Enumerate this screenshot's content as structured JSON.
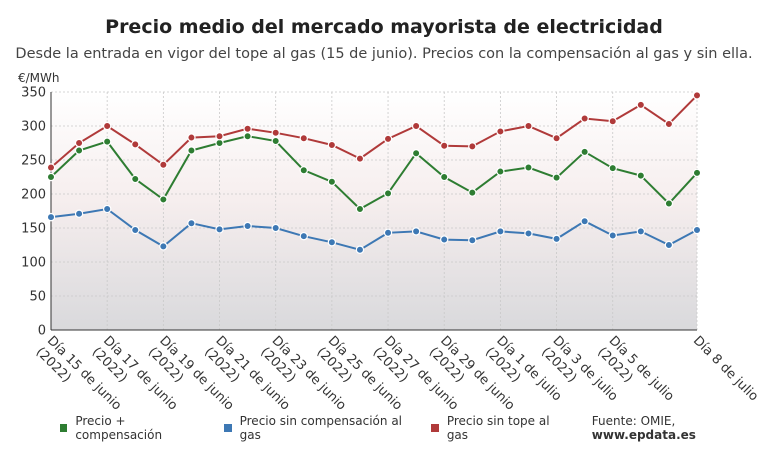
{
  "title": "Precio medio del mercado mayorista de electricidad",
  "subtitle": "Desde la entrada en vigor del tope al gas (15 de junio). Precios con la compensación al gas y sin ella.",
  "source_prefix": "Fuente: OMIE, ",
  "source_site": "www.epdata.es",
  "colors": {
    "green": "#2e7d32",
    "blue": "#3d78b4",
    "red": "#b03a3a"
  },
  "chart_data": {
    "type": "line",
    "ylabel": "€/MWh",
    "ylim": [
      0,
      350
    ],
    "yticks": [
      0,
      50,
      100,
      150,
      200,
      250,
      300,
      350
    ],
    "x_tick_labels": [
      [
        "Día 15 de junio",
        "(2022)"
      ],
      [
        "Día 17 de junio",
        "(2022)"
      ],
      [
        "Día 19 de junio",
        "(2022)"
      ],
      [
        "Día 21 de junio",
        "(2022)"
      ],
      [
        "Día 23 de junio",
        "(2022)"
      ],
      [
        "Día 25 de junio",
        "(2022)"
      ],
      [
        "Día 27 de junio",
        "(2022)"
      ],
      [
        "Día 29 de junio",
        "(2022)"
      ],
      [
        "Día 1 de julio",
        "(2022)"
      ],
      [
        "Día 3 de julio",
        "(2022)"
      ],
      [
        "Día 5 de julio",
        "(2022)"
      ],
      [
        "Día 8 de julio",
        ""
      ]
    ],
    "x_tick_index": [
      0,
      2,
      4,
      6,
      8,
      10,
      12,
      14,
      16,
      18,
      20,
      23
    ],
    "series": [
      {
        "name": "Precio + compensación",
        "color": "#2e7d32",
        "values": [
          225,
          264,
          277,
          222,
          192,
          264,
          275,
          285,
          278,
          235,
          218,
          178,
          201,
          260,
          225,
          202,
          233,
          239,
          224,
          262,
          238,
          227,
          186,
          231
        ]
      },
      {
        "name": "Precio sin compensación al gas",
        "color": "#3d78b4",
        "values": [
          166,
          171,
          178,
          147,
          123,
          157,
          148,
          153,
          150,
          138,
          129,
          118,
          143,
          145,
          133,
          132,
          145,
          142,
          134,
          160,
          139,
          145,
          125,
          147
        ]
      },
      {
        "name": "Precio sin tope al gas",
        "color": "#b03a3a",
        "values": [
          239,
          275,
          300,
          273,
          243,
          283,
          285,
          296,
          290,
          282,
          272,
          252,
          281,
          300,
          271,
          270,
          292,
          300,
          282,
          311,
          307,
          331,
          303,
          345
        ]
      }
    ],
    "grid": true,
    "legend": "bottom"
  }
}
